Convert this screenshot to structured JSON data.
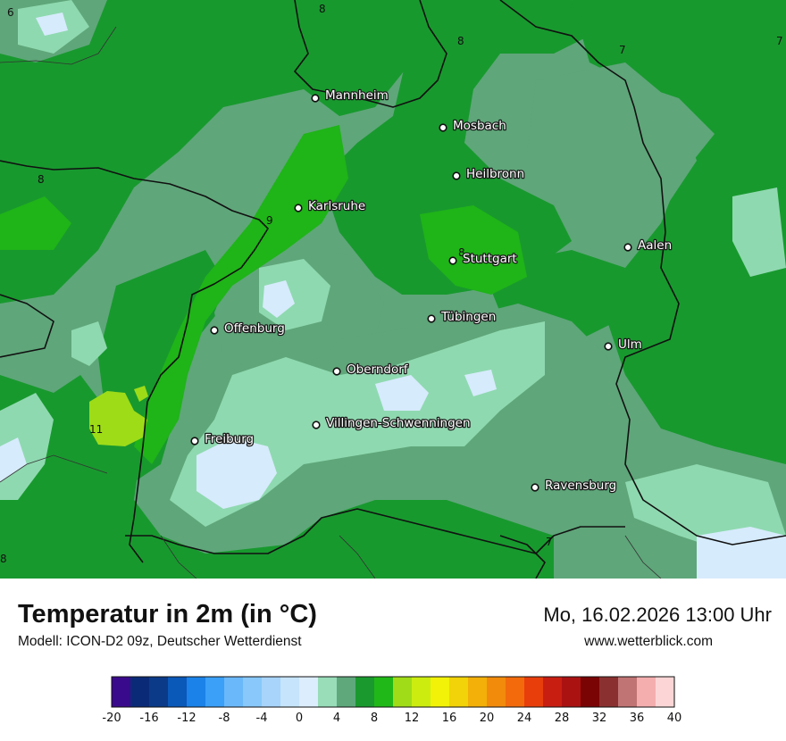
{
  "map": {
    "cities": [
      {
        "name": "Mannheim"
      },
      {
        "name": "Mosbach"
      },
      {
        "name": "Heilbronn"
      },
      {
        "name": "Karlsruhe"
      },
      {
        "name": "Aalen"
      },
      {
        "name": "Stuttgart"
      },
      {
        "name": "Tübingen"
      },
      {
        "name": "Offenburg"
      },
      {
        "name": "Ulm"
      },
      {
        "name": "Oberndorf"
      },
      {
        "name": "Villingen-Schwenningen"
      },
      {
        "name": "Freiburg"
      },
      {
        "name": "Ravensburg"
      }
    ],
    "contour_labels": [
      "6",
      "8",
      "8",
      "7",
      "7",
      "8",
      "9",
      "8",
      "11",
      "7",
      "8"
    ]
  },
  "footer": {
    "title": "Temperatur in 2m (in °C)",
    "subtitle": "Modell: ICON-D2 09z, Deutscher Wetterdienst",
    "datetime": "Mo, 16.02.2026 13:00 Uhr",
    "website": "www.wetterblick.com"
  },
  "legend": {
    "ticks": [
      "-20",
      "-16",
      "-12",
      "-8",
      "-4",
      "0",
      "4",
      "8",
      "12",
      "16",
      "20",
      "24",
      "28",
      "32",
      "36",
      "40"
    ],
    "colors": [
      "#3a0a8c",
      "#0a2a78",
      "#0a3a88",
      "#0a58b8",
      "#1a82e8",
      "#3aa0f8",
      "#6ab8fa",
      "#88c8fa",
      "#a8d4fb",
      "#c6e4fb",
      "#dcedfd",
      "#98dcb8",
      "#5ea87c",
      "#1a9a2e",
      "#20b818",
      "#a0dc18",
      "#ccec10",
      "#f2f208",
      "#f2d208",
      "#f2b008",
      "#f28a0c",
      "#f26a0c",
      "#e83e0c",
      "#c81e12",
      "#aa1212",
      "#7a0404",
      "#8a3030",
      "#c07474",
      "#f4aeae",
      "#fcd6d6"
    ]
  },
  "palette": {
    "grey_green": "#5fa67a",
    "green": "#18992e",
    "bright_green": "#1fb418",
    "light_green": "#8fd9b0",
    "yellow_green": "#9edc18",
    "pale_blue": "#d6ebfc"
  }
}
